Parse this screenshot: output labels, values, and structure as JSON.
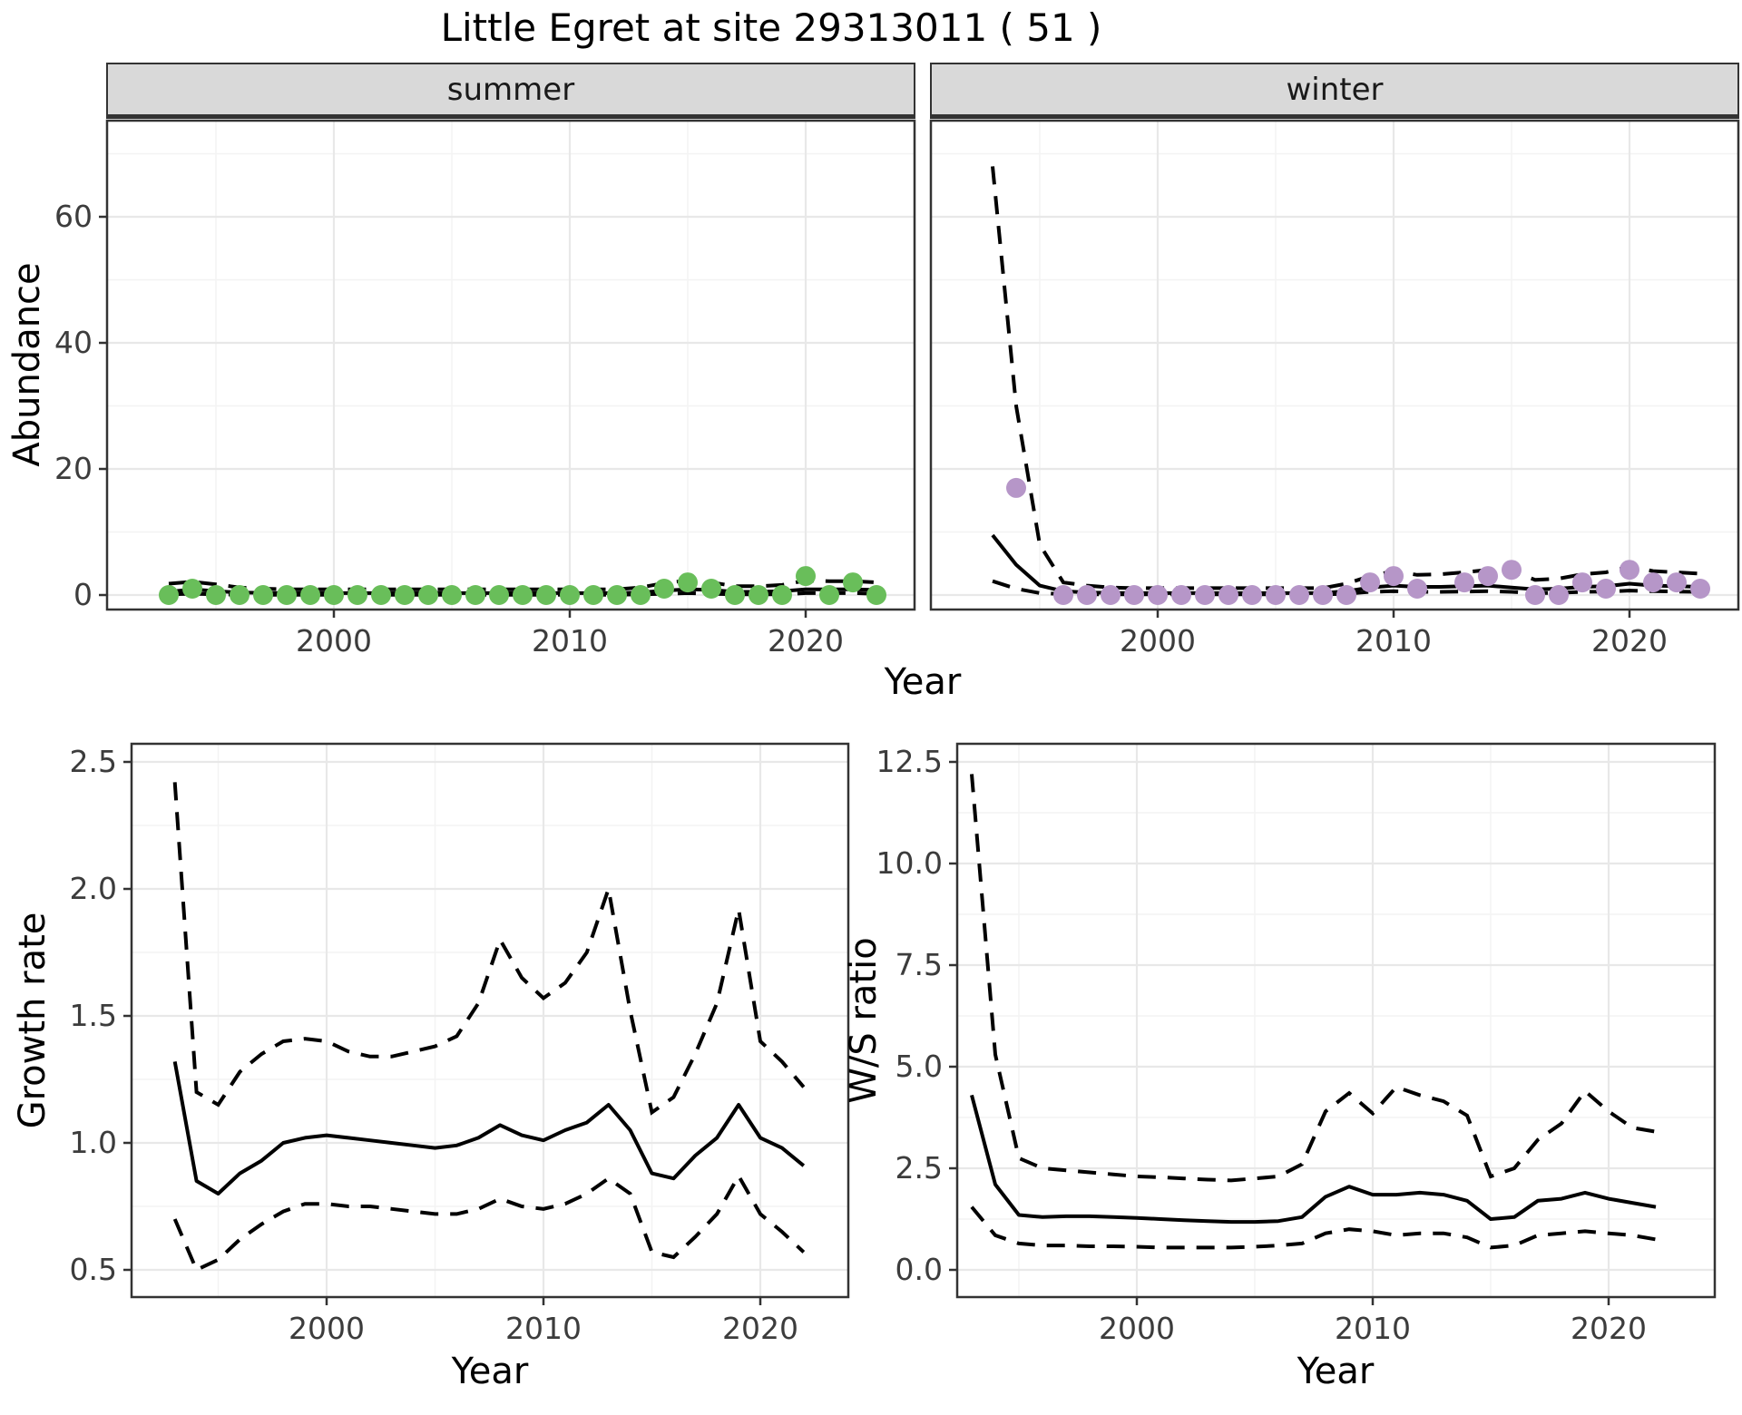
{
  "title": "Little Egret at site 29313011 ( 51 )",
  "colors": {
    "summer_points": "#69be5a",
    "winter_points": "#b696c8",
    "trend_line": "#000000",
    "ci_line": "#000000",
    "strip_bg": "#d9d9d9",
    "grid_major": "#e8e8e8",
    "grid_minor": "#f3f3f3",
    "panel_border": "#333333",
    "tick_text": "#3c3c3c"
  },
  "chart_data": [
    {
      "id": "abundance-summer",
      "type": "line+scatter",
      "facet_label": "summer",
      "ylabel": "Abundance",
      "xlabel": "Year",
      "x_years": [
        1993,
        1994,
        1995,
        1996,
        1997,
        1998,
        1999,
        2000,
        2001,
        2002,
        2003,
        2004,
        2005,
        2006,
        2007,
        2008,
        2009,
        2010,
        2011,
        2012,
        2013,
        2014,
        2015,
        2016,
        2017,
        2018,
        2019,
        2020,
        2021,
        2022,
        2023
      ],
      "points": {
        "x": [
          1993,
          1994,
          1995,
          1996,
          1997,
          1998,
          1999,
          2000,
          2001,
          2002,
          2003,
          2004,
          2005,
          2006,
          2007,
          2008,
          2009,
          2010,
          2011,
          2012,
          2013,
          2014,
          2015,
          2016,
          2017,
          2018,
          2019,
          2020,
          2021,
          2022,
          2023
        ],
        "y": [
          0,
          1,
          0,
          0,
          0,
          0,
          0,
          0,
          0,
          0,
          0,
          0,
          0,
          0,
          0,
          0,
          0,
          0,
          0,
          0,
          0,
          1,
          2,
          1,
          0,
          0,
          0,
          3,
          0,
          2,
          0
        ]
      },
      "trend": [
        0.5,
        0.9,
        0.6,
        0.4,
        0.35,
        0.3,
        0.3,
        0.3,
        0.3,
        0.3,
        0.3,
        0.3,
        0.3,
        0.3,
        0.3,
        0.3,
        0.3,
        0.3,
        0.3,
        0.3,
        0.4,
        0.7,
        0.9,
        0.8,
        0.5,
        0.5,
        0.6,
        0.9,
        0.9,
        0.9,
        0.8
      ],
      "ci_upper": [
        1.8,
        2.1,
        1.7,
        1.2,
        1.0,
        0.9,
        0.9,
        0.9,
        0.9,
        0.9,
        0.9,
        0.9,
        0.9,
        0.9,
        0.9,
        0.9,
        0.9,
        0.9,
        0.9,
        0.9,
        1.2,
        1.9,
        2.3,
        2.0,
        1.4,
        1.4,
        1.6,
        2.3,
        2.2,
        2.2,
        2.0
      ],
      "ci_lower": [
        0.1,
        0.2,
        0.1,
        0.05,
        0.05,
        0.05,
        0.05,
        0.05,
        0.05,
        0.05,
        0.05,
        0.05,
        0.05,
        0.05,
        0.05,
        0.05,
        0.05,
        0.05,
        0.05,
        0.05,
        0.1,
        0.2,
        0.3,
        0.2,
        0.1,
        0.1,
        0.1,
        0.3,
        0.3,
        0.3,
        0.2
      ],
      "xticks": {
        "values": [
          2000,
          2010,
          2020
        ],
        "labels": [
          "2000",
          "2010",
          "2020"
        ]
      },
      "yticks": {
        "values": [
          0,
          20,
          40,
          60
        ],
        "labels": [
          "0",
          "20",
          "40",
          "60"
        ]
      },
      "xlim": [
        1990.4,
        2024.6
      ],
      "ylim": [
        -2.3,
        75.3
      ],
      "grid": true,
      "legend": "none"
    },
    {
      "id": "abundance-winter",
      "type": "line+scatter",
      "facet_label": "winter",
      "ylabel": "Abundance",
      "xlabel": "Year",
      "x_years": [
        1993,
        1994,
        1995,
        1996,
        1997,
        1998,
        1999,
        2000,
        2001,
        2002,
        2003,
        2004,
        2005,
        2006,
        2007,
        2008,
        2009,
        2010,
        2011,
        2012,
        2013,
        2014,
        2015,
        2016,
        2017,
        2018,
        2019,
        2020,
        2021,
        2022,
        2023
      ],
      "points": {
        "x": [
          1994,
          1996,
          1997,
          1998,
          1999,
          2000,
          2001,
          2002,
          2003,
          2004,
          2005,
          2006,
          2007,
          2008,
          2009,
          2010,
          2011,
          2013,
          2014,
          2015,
          2016,
          2017,
          2018,
          2019,
          2020,
          2021,
          2022,
          2023
        ],
        "y": [
          17,
          0,
          0,
          0,
          0,
          0,
          0,
          0,
          0,
          0,
          0,
          0,
          0,
          0,
          2,
          3,
          1,
          2,
          3,
          4,
          0,
          0,
          2,
          1,
          4,
          2,
          2,
          1
        ]
      },
      "trend": [
        9.5,
        4.8,
        1.5,
        0.6,
        0.4,
        0.35,
        0.3,
        0.3,
        0.3,
        0.3,
        0.3,
        0.3,
        0.3,
        0.3,
        0.3,
        0.6,
        1.2,
        1.5,
        1.3,
        1.3,
        1.4,
        1.5,
        1.2,
        0.9,
        1.0,
        1.3,
        1.4,
        1.8,
        1.5,
        1.4,
        1.3
      ],
      "ci_upper": [
        68,
        30,
        8,
        2,
        1.5,
        1.2,
        1.1,
        1.1,
        1.1,
        1.1,
        1.1,
        1.1,
        1.1,
        1.1,
        1.1,
        1.8,
        3.0,
        3.8,
        3.2,
        3.3,
        3.6,
        4.0,
        3.8,
        2.4,
        2.6,
        3.3,
        3.6,
        4.5,
        3.8,
        3.6,
        3.4
      ],
      "ci_lower": [
        2.2,
        1.0,
        0.3,
        0.15,
        0.1,
        0.1,
        0.1,
        0.1,
        0.1,
        0.1,
        0.1,
        0.1,
        0.1,
        0.1,
        0.1,
        0.2,
        0.5,
        0.6,
        0.5,
        0.5,
        0.55,
        0.6,
        0.5,
        0.3,
        0.35,
        0.5,
        0.55,
        0.7,
        0.6,
        0.55,
        0.5
      ],
      "xticks": {
        "values": [
          2000,
          2010,
          2020
        ],
        "labels": [
          "2000",
          "2010",
          "2020"
        ]
      },
      "yticks": {
        "values": [
          0,
          20,
          40,
          60
        ],
        "labels": [
          "0",
          "20",
          "40",
          "60"
        ]
      },
      "xlim": [
        1990.4,
        2024.6
      ],
      "ylim": [
        -2.3,
        75.3
      ],
      "grid": true,
      "legend": "none"
    },
    {
      "id": "growth-rate",
      "type": "line",
      "facet_label": "",
      "ylabel": "Growth rate",
      "xlabel": "Year",
      "x_years": [
        1993,
        1994,
        1995,
        1996,
        1997,
        1998,
        1999,
        2000,
        2001,
        2002,
        2003,
        2004,
        2005,
        2006,
        2007,
        2008,
        2009,
        2010,
        2011,
        2012,
        2013,
        2014,
        2015,
        2016,
        2017,
        2018,
        2019,
        2020,
        2021,
        2022
      ],
      "trend": [
        1.32,
        0.85,
        0.8,
        0.88,
        0.93,
        1.0,
        1.02,
        1.03,
        1.02,
        1.01,
        1.0,
        0.99,
        0.98,
        0.99,
        1.02,
        1.07,
        1.03,
        1.01,
        1.05,
        1.08,
        1.15,
        1.05,
        0.88,
        0.86,
        0.95,
        1.02,
        1.15,
        1.02,
        0.98,
        0.91
      ],
      "ci_upper": [
        2.42,
        1.2,
        1.15,
        1.28,
        1.35,
        1.4,
        1.41,
        1.4,
        1.36,
        1.34,
        1.34,
        1.36,
        1.38,
        1.42,
        1.55,
        1.8,
        1.65,
        1.57,
        1.63,
        1.75,
        2.0,
        1.52,
        1.12,
        1.18,
        1.35,
        1.55,
        1.92,
        1.4,
        1.32,
        1.22
      ],
      "ci_lower": [
        0.7,
        0.5,
        0.54,
        0.62,
        0.68,
        0.73,
        0.76,
        0.76,
        0.75,
        0.75,
        0.74,
        0.73,
        0.72,
        0.72,
        0.74,
        0.78,
        0.75,
        0.74,
        0.76,
        0.8,
        0.86,
        0.8,
        0.57,
        0.55,
        0.63,
        0.72,
        0.87,
        0.72,
        0.65,
        0.57
      ],
      "xticks": {
        "values": [
          2000,
          2010,
          2020
        ],
        "labels": [
          "2000",
          "2010",
          "2020"
        ]
      },
      "yticks": {
        "values": [
          0.5,
          1.0,
          1.5,
          2.0,
          2.5
        ],
        "labels": [
          "0.5",
          "1.0",
          "1.5",
          "2.0",
          "2.5"
        ]
      },
      "xlim": [
        1991.0,
        2024.1
      ],
      "ylim": [
        0.39,
        2.57
      ],
      "grid": true,
      "legend": "none"
    },
    {
      "id": "ws-ratio",
      "type": "line",
      "facet_label": "",
      "ylabel": "W/S ratio",
      "xlabel": "Year",
      "x_years": [
        1993,
        1994,
        1995,
        1996,
        1997,
        1998,
        1999,
        2000,
        2001,
        2002,
        2003,
        2004,
        2005,
        2006,
        2007,
        2008,
        2009,
        2010,
        2011,
        2012,
        2013,
        2014,
        2015,
        2016,
        2017,
        2018,
        2019,
        2020,
        2021,
        2022
      ],
      "trend": [
        4.3,
        2.1,
        1.35,
        1.3,
        1.32,
        1.32,
        1.3,
        1.28,
        1.25,
        1.22,
        1.2,
        1.18,
        1.18,
        1.2,
        1.3,
        1.8,
        2.05,
        1.85,
        1.85,
        1.9,
        1.85,
        1.7,
        1.25,
        1.3,
        1.7,
        1.75,
        1.9,
        1.75,
        1.65,
        1.55
      ],
      "ci_upper": [
        12.2,
        5.3,
        2.75,
        2.5,
        2.45,
        2.4,
        2.35,
        2.3,
        2.28,
        2.25,
        2.22,
        2.2,
        2.25,
        2.3,
        2.6,
        3.9,
        4.35,
        3.85,
        4.5,
        4.3,
        4.15,
        3.8,
        2.3,
        2.5,
        3.2,
        3.6,
        4.4,
        3.9,
        3.5,
        3.4
      ],
      "ci_lower": [
        1.55,
        0.85,
        0.65,
        0.6,
        0.6,
        0.58,
        0.58,
        0.57,
        0.55,
        0.55,
        0.55,
        0.55,
        0.57,
        0.6,
        0.65,
        0.9,
        1.0,
        0.95,
        0.85,
        0.9,
        0.9,
        0.8,
        0.55,
        0.6,
        0.85,
        0.9,
        0.95,
        0.9,
        0.85,
        0.75
      ],
      "xticks": {
        "values": [
          2000,
          2010,
          2020
        ],
        "labels": [
          "2000",
          "2010",
          "2020"
        ]
      },
      "yticks": {
        "values": [
          0,
          2.5,
          5,
          7.5,
          10,
          12.5
        ],
        "labels": [
          "0.0",
          "2.5",
          "5.0",
          "7.5",
          "10.0",
          "12.5"
        ]
      },
      "xlim": [
        1992.4,
        2024.5
      ],
      "ylim": [
        -0.67,
        12.95
      ],
      "grid": true,
      "legend": "none"
    }
  ]
}
